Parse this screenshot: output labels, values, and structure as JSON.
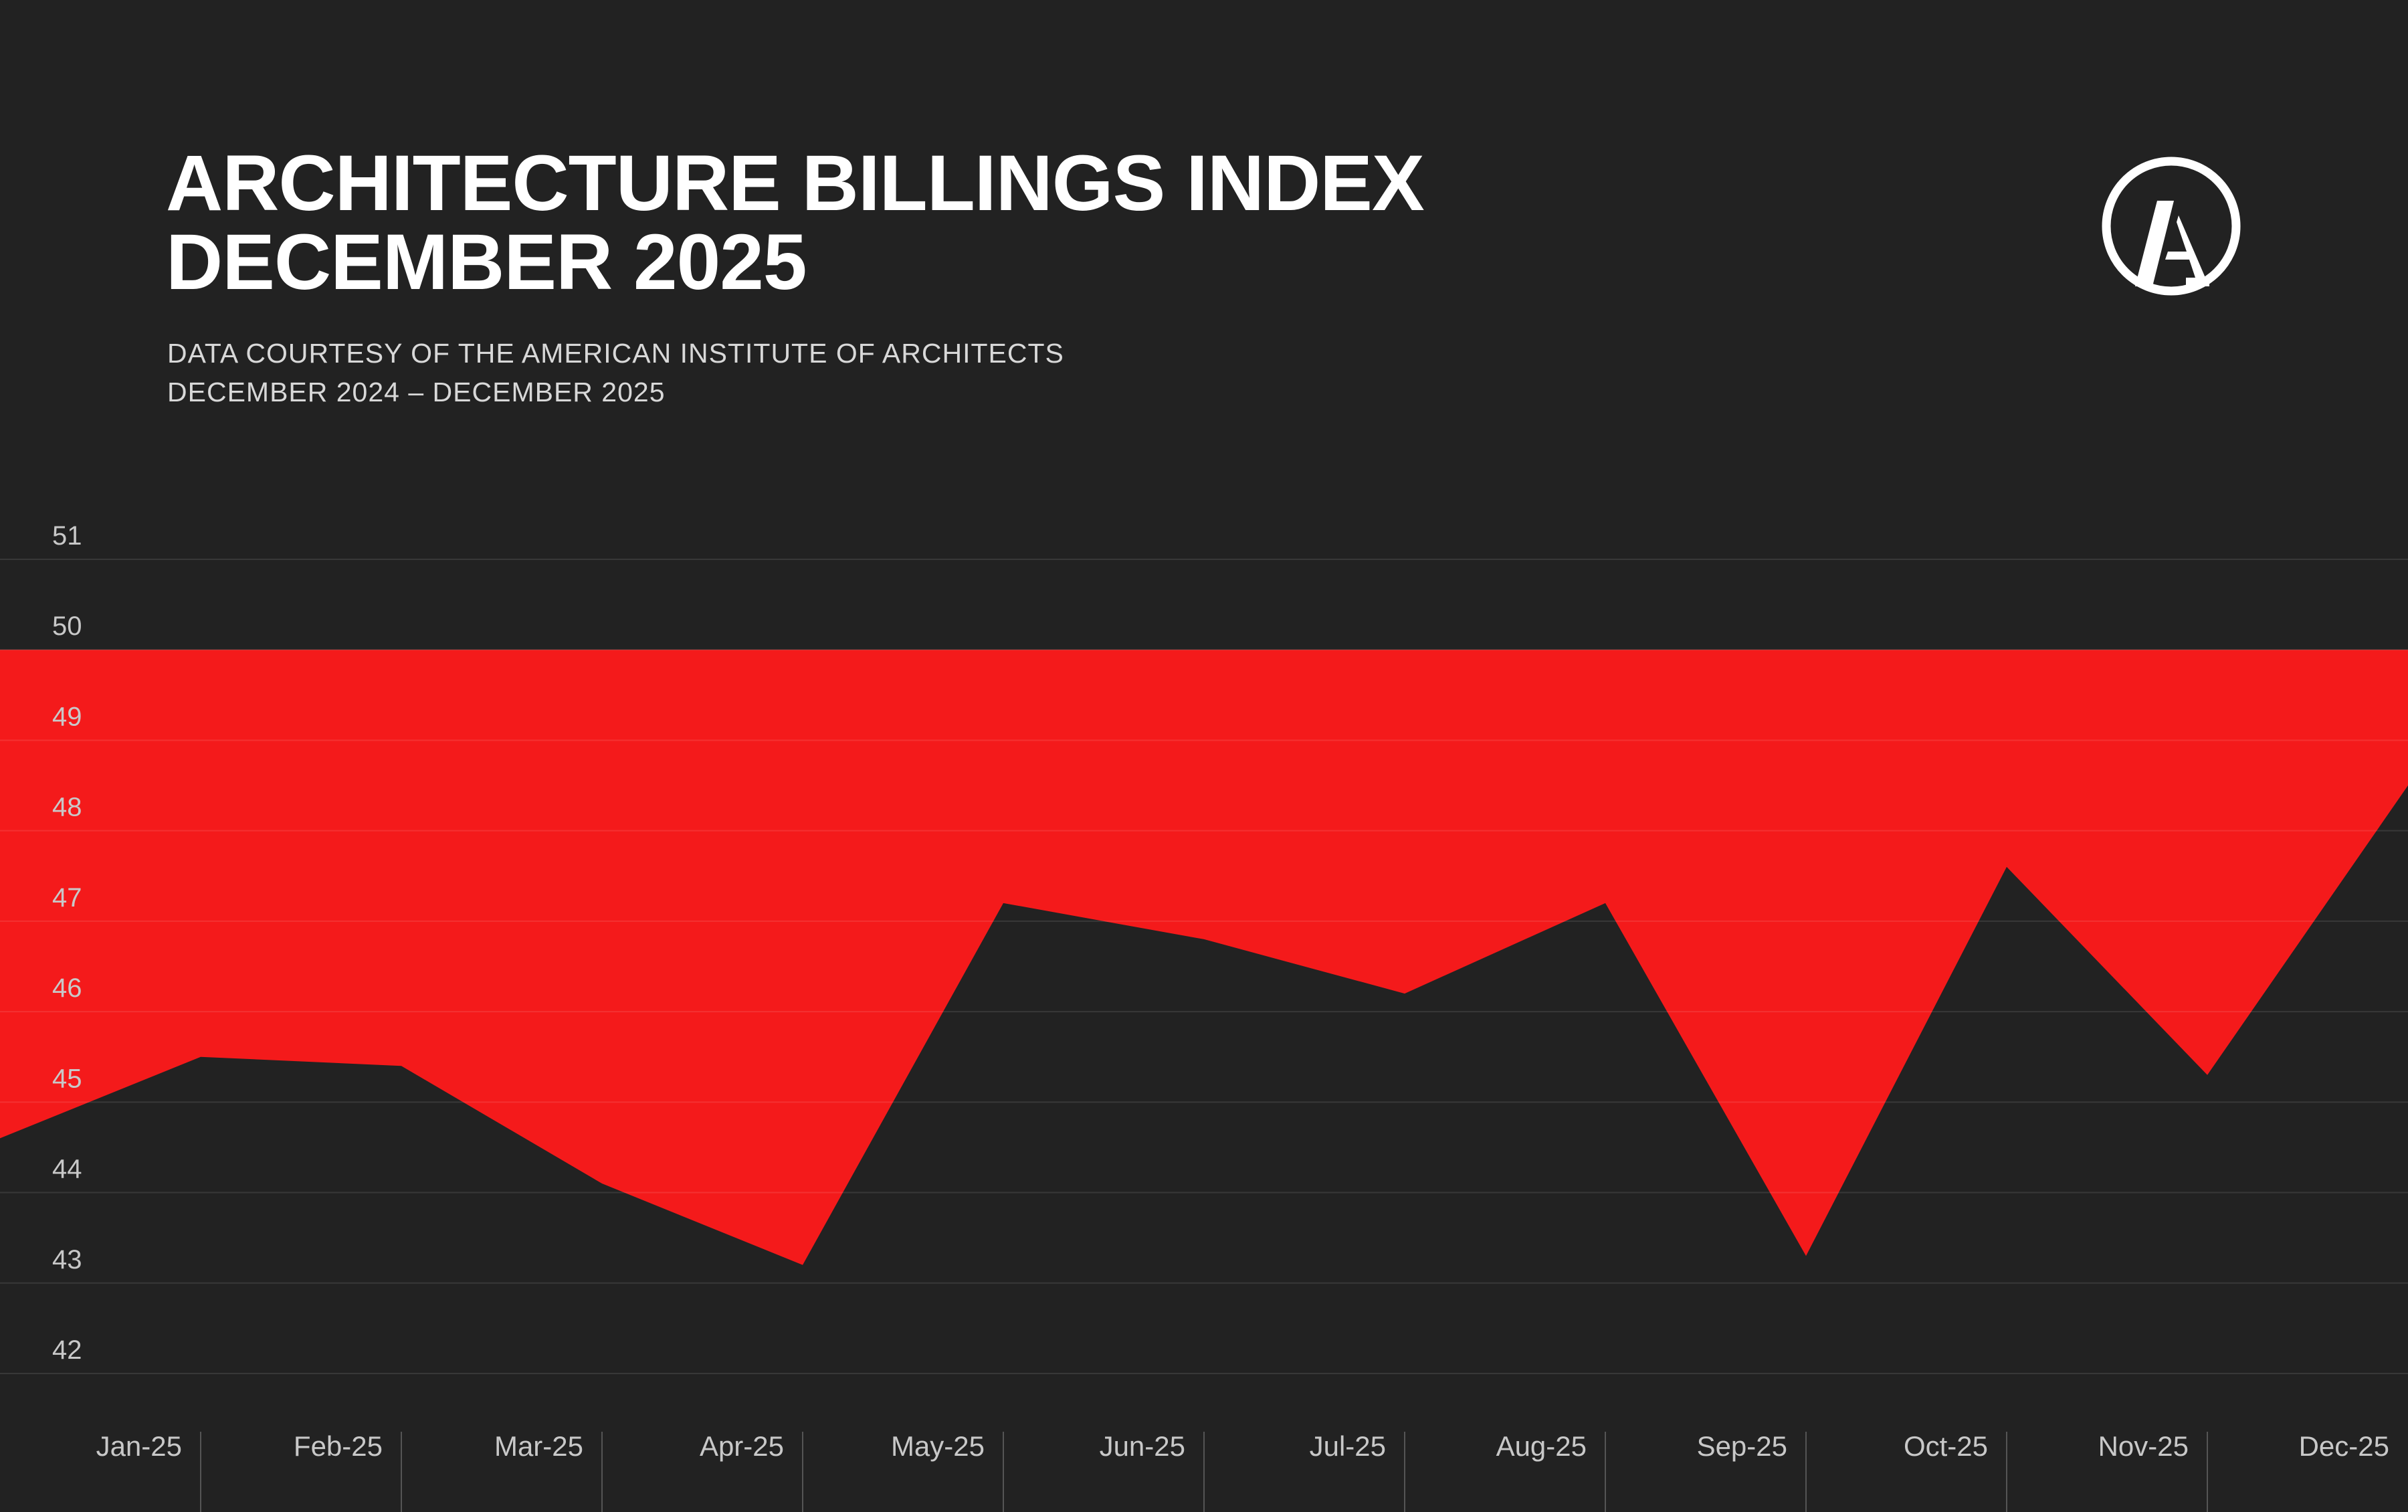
{
  "header": {
    "title_line1": "ARCHITECTURE BILLINGS INDEX",
    "title_line2": "DECEMBER 2025",
    "subtitle_line1": "DATA COURTESY OF THE AMERICAN INSTITUTE OF ARCHITECTS",
    "subtitle_line2": "DECEMBER 2024 – DECEMBER 2025",
    "logo": "AIA circle A logo"
  },
  "colors": {
    "background": "#222222",
    "below_50_fill": "#f41a1b",
    "text": "#ffffff",
    "grid": "#3a3a3a"
  },
  "chart_data": {
    "type": "area",
    "title": "ARCHITECTURE BILLINGS INDEX",
    "xlabel": "",
    "ylabel": "",
    "ylim": [
      42,
      51
    ],
    "yticks": [
      "51",
      "50",
      "49",
      "48",
      "47",
      "46",
      "45",
      "44",
      "43",
      "42"
    ],
    "baseline": 50,
    "fill": "area between the index line and 50 is shaded red",
    "grid": true,
    "start_value": 44.6,
    "categories": [
      "Jan-25",
      "Feb-25",
      "Mar-25",
      "Apr-25",
      "May-25",
      "Jun-25",
      "Jul-25",
      "Aug-25",
      "Sep-25",
      "Oct-25",
      "Nov-25",
      "Dec-25"
    ],
    "values": [
      45.5,
      45.4,
      44.1,
      43.2,
      47.2,
      46.8,
      46.2,
      47.2,
      43.3,
      47.6,
      45.3,
      48.5
    ]
  }
}
